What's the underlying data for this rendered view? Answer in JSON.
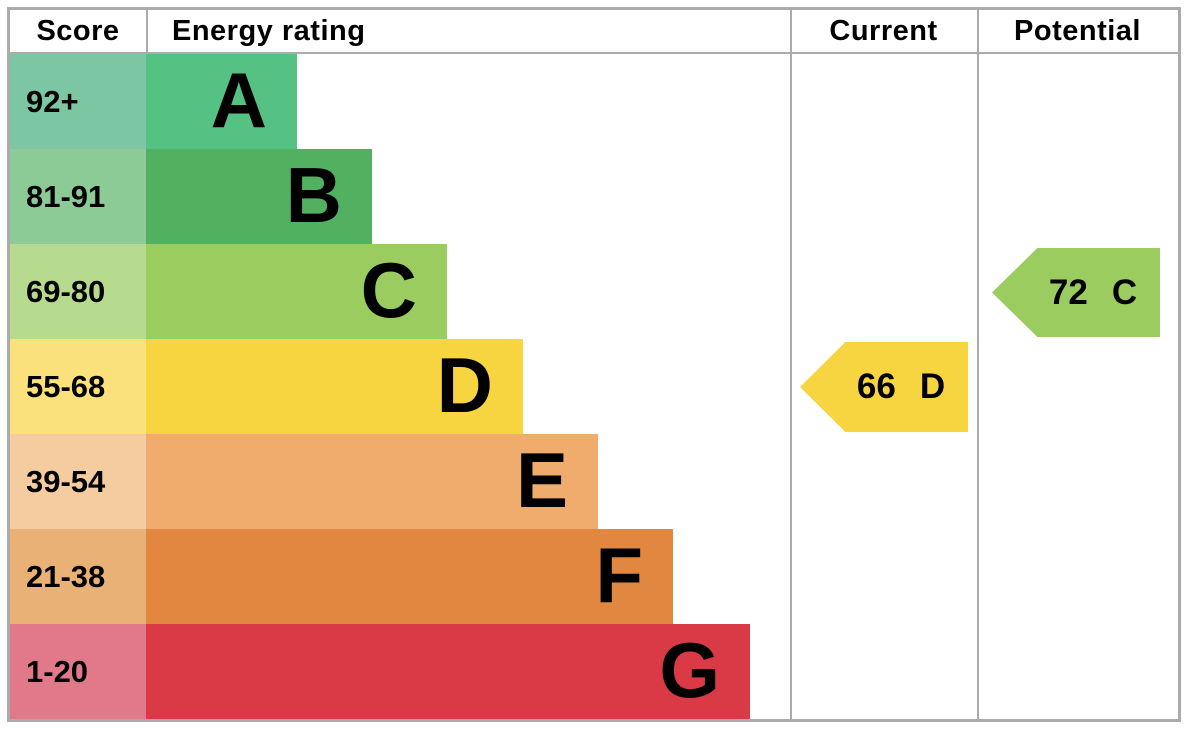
{
  "chart_data": {
    "type": "bar",
    "title": "Energy rating",
    "columns": {
      "score": "Score",
      "energy_rating": "Energy rating",
      "current": "Current",
      "potential": "Potential"
    },
    "bands": [
      {
        "letter": "A",
        "score_range": "92+",
        "color": "#55c284",
        "tint": "#7cc6a4"
      },
      {
        "letter": "B",
        "score_range": "81-91",
        "color": "#52b161",
        "tint": "#8cca96"
      },
      {
        "letter": "C",
        "score_range": "69-80",
        "color": "#9bcc5f",
        "tint": "#b6da8e"
      },
      {
        "letter": "D",
        "score_range": "55-68",
        "color": "#f6d540",
        "tint": "#fae17c"
      },
      {
        "letter": "E",
        "score_range": "39-54",
        "color": "#f0ac6d",
        "tint": "#f4cc9f"
      },
      {
        "letter": "F",
        "score_range": "21-38",
        "color": "#e1873f",
        "tint": "#e9b176"
      },
      {
        "letter": "G",
        "score_range": "1-20",
        "color": "#d93a45",
        "tint": "#e1798a"
      }
    ],
    "markers": {
      "current": {
        "value": "66",
        "band": "D",
        "color": "#f6d540"
      },
      "potential": {
        "value": "72",
        "band": "C",
        "color": "#9bcc5f"
      }
    },
    "layout": {
      "border_color": "#ababab",
      "legend": "none",
      "grid": "off"
    }
  }
}
